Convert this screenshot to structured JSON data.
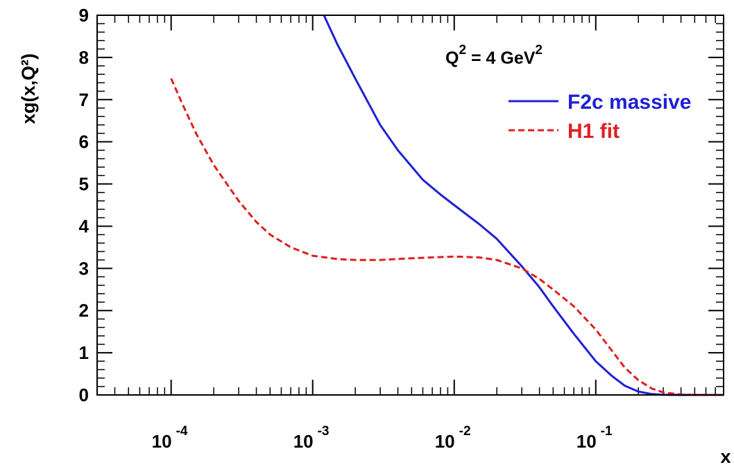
{
  "chart_data": {
    "type": "line",
    "xscale": "log",
    "xlim": [
      3e-05,
      0.8
    ],
    "ylim": [
      0,
      9
    ],
    "xlabel": "x",
    "ylabel": "xg(x,Q²)",
    "annotation": {
      "prefix": "Q",
      "exp1": "2",
      "mid": " = 4 GeV",
      "exp2": "2"
    },
    "yticks": [
      0,
      1,
      2,
      3,
      4,
      5,
      6,
      7,
      8,
      9
    ],
    "xticks": [
      {
        "value": 0.0001,
        "base": "10",
        "exponent": "-4"
      },
      {
        "value": 0.001,
        "base": "10",
        "exponent": "-3"
      },
      {
        "value": 0.01,
        "base": "10",
        "exponent": "-2"
      },
      {
        "value": 0.1,
        "base": "10",
        "exponent": "-1"
      }
    ],
    "legend_position": "top-right",
    "series": [
      {
        "name": "F2c massive",
        "color": "#1f1fd6",
        "style": "solid",
        "x": [
          0.0012,
          0.0015,
          0.002,
          0.003,
          0.004,
          0.006,
          0.008,
          0.01,
          0.015,
          0.02,
          0.03,
          0.04,
          0.05,
          0.07,
          0.1,
          0.13,
          0.16,
          0.2,
          0.25,
          0.3,
          0.4,
          0.6,
          0.8
        ],
        "y": [
          9.0,
          8.3,
          7.5,
          6.4,
          5.8,
          5.1,
          4.75,
          4.5,
          4.05,
          3.7,
          3.05,
          2.55,
          2.1,
          1.45,
          0.8,
          0.45,
          0.22,
          0.08,
          0.02,
          0.005,
          0.0,
          0.0,
          0.0
        ]
      },
      {
        "name": "H1 fit",
        "color": "#e01e1e",
        "style": "dashed",
        "x": [
          0.0001,
          0.00012,
          0.00015,
          0.0002,
          0.0003,
          0.0004,
          0.0005,
          0.0007,
          0.001,
          0.0015,
          0.002,
          0.003,
          0.005,
          0.007,
          0.01,
          0.015,
          0.02,
          0.03,
          0.04,
          0.05,
          0.07,
          0.1,
          0.13,
          0.16,
          0.2,
          0.25,
          0.3,
          0.4,
          0.5,
          0.6,
          0.8
        ],
        "y": [
          7.5,
          6.9,
          6.2,
          5.45,
          4.6,
          4.1,
          3.8,
          3.5,
          3.3,
          3.22,
          3.2,
          3.2,
          3.24,
          3.26,
          3.28,
          3.26,
          3.2,
          3.0,
          2.75,
          2.5,
          2.1,
          1.55,
          1.05,
          0.65,
          0.35,
          0.15,
          0.06,
          0.01,
          0.0,
          0.0,
          0.0
        ]
      }
    ]
  }
}
